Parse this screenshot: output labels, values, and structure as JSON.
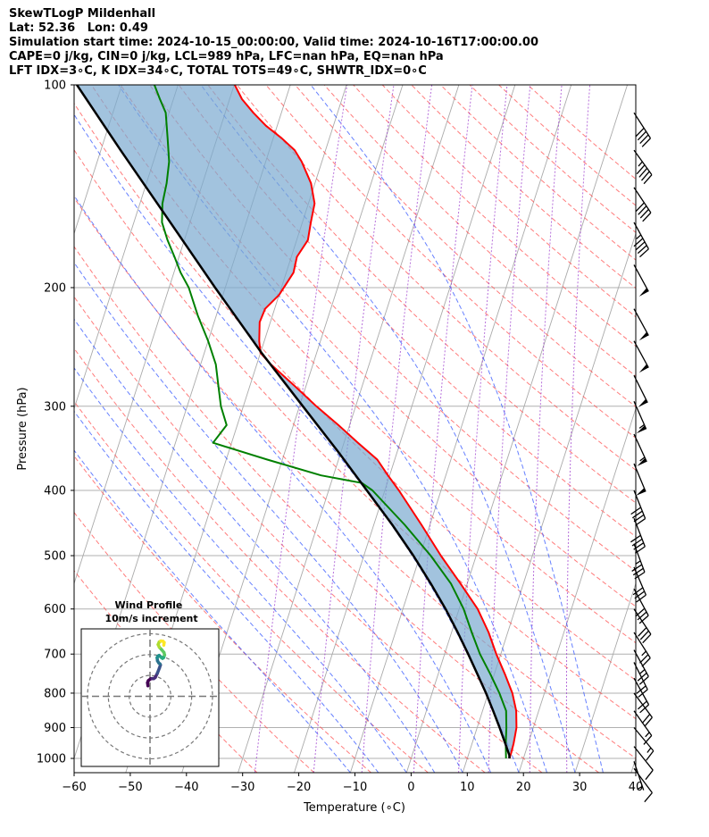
{
  "chart_data": {
    "type": "line",
    "title": "SkewTLogP Mildenhall",
    "header_lines": [
      "SkewTLogP Mildenhall",
      "Lat: 52.36   Lon: 0.49",
      "Simulation start time: 2024-10-15_00:00:00, Valid time: 2024-10-16T17:00:00.00",
      "CAPE=0 j/kg, CIN=0 j/kg, LCL=989 hPa, LFC=nan hPa, EQ=nan hPa",
      "LFT IDX=3∘C, K IDX=34∘C, TOTAL TOTS=49∘C, SHWTR_IDX=0∘C"
    ],
    "xlabel": "Temperature (∘C)",
    "ylabel": "Pressure (hPa)",
    "xlim": [
      -60,
      40
    ],
    "ylim": [
      1050,
      100
    ],
    "x_ticks": [
      -60,
      -50,
      -40,
      -30,
      -20,
      -10,
      0,
      10,
      20,
      30,
      40
    ],
    "x_tick_labels": [
      "−60",
      "−50",
      "−40",
      "−30",
      "−20",
      "−10",
      "0",
      "10",
      "20",
      "30",
      "40"
    ],
    "y_ticks": [
      1000,
      900,
      800,
      700,
      600,
      500,
      400,
      300,
      200,
      100
    ],
    "y_tick_labels": [
      "1000",
      "900",
      "800",
      "700",
      "600",
      "500",
      "400",
      "300",
      "200",
      "100"
    ],
    "skew_per_log_decade": 38.5,
    "series": [
      {
        "name": "Temperature",
        "color": "#ff0000",
        "points": [
          [
            1000,
            17.5
          ],
          [
            980,
            17.5
          ],
          [
            950,
            17.4
          ],
          [
            925,
            17.2
          ],
          [
            900,
            17.0
          ],
          [
            850,
            16.0
          ],
          [
            800,
            14.3
          ],
          [
            750,
            11.9
          ],
          [
            700,
            9.2
          ],
          [
            650,
            6.6
          ],
          [
            600,
            3.3
          ],
          [
            550,
            -1.2
          ],
          [
            500,
            -6.3
          ],
          [
            450,
            -11.5
          ],
          [
            400,
            -17.5
          ],
          [
            380,
            -20.3
          ],
          [
            360,
            -23.1
          ],
          [
            340,
            -27.5
          ],
          [
            320,
            -32.0
          ],
          [
            300,
            -37.0
          ],
          [
            280,
            -42.0
          ],
          [
            260,
            -47.5
          ],
          [
            250,
            -50.0
          ],
          [
            240,
            -50.9
          ],
          [
            225,
            -51.9
          ],
          [
            215,
            -51.7
          ],
          [
            205,
            -50.0
          ],
          [
            190,
            -48.7
          ],
          [
            180,
            -49.0
          ],
          [
            170,
            -48.0
          ],
          [
            160,
            -48.5
          ],
          [
            150,
            -48.9
          ],
          [
            140,
            -50.7
          ],
          [
            130,
            -53.6
          ],
          [
            125,
            -55.5
          ],
          [
            120,
            -58.5
          ],
          [
            115,
            -62.0
          ],
          [
            110,
            -65.0
          ],
          [
            105,
            -67.8
          ],
          [
            100,
            -69.9
          ]
        ]
      },
      {
        "name": "Dewpoint",
        "color": "#008000",
        "points": [
          [
            1000,
            16.9
          ],
          [
            950,
            16.0
          ],
          [
            900,
            15.2
          ],
          [
            850,
            14.2
          ],
          [
            800,
            12.0
          ],
          [
            750,
            9.3
          ],
          [
            700,
            6.3
          ],
          [
            650,
            3.6
          ],
          [
            600,
            0.8
          ],
          [
            550,
            -2.9
          ],
          [
            500,
            -8.1
          ],
          [
            450,
            -14.5
          ],
          [
            400,
            -22.2
          ],
          [
            390,
            -24.5
          ],
          [
            380,
            -32.2
          ],
          [
            360,
            -42.7
          ],
          [
            340,
            -53.3
          ],
          [
            320,
            -51.9
          ],
          [
            300,
            -54.0
          ],
          [
            280,
            -55.6
          ],
          [
            260,
            -57.3
          ],
          [
            240,
            -60.0
          ],
          [
            220,
            -63.3
          ],
          [
            200,
            -66.5
          ],
          [
            190,
            -68.8
          ],
          [
            180,
            -70.8
          ],
          [
            170,
            -73.0
          ],
          [
            160,
            -75.0
          ],
          [
            150,
            -76.0
          ],
          [
            140,
            -76.4
          ],
          [
            130,
            -77.2
          ],
          [
            120,
            -78.8
          ],
          [
            110,
            -80.6
          ],
          [
            105,
            -82.4
          ],
          [
            100,
            -84.2
          ]
        ]
      },
      {
        "name": "Parcel profile",
        "color": "#000000",
        "points": [
          [
            1000,
            17.5
          ],
          [
            989,
            17.3
          ],
          [
            950,
            15.9
          ],
          [
            900,
            14.0
          ],
          [
            850,
            11.9
          ],
          [
            800,
            9.6
          ],
          [
            750,
            7.0
          ],
          [
            700,
            4.2
          ],
          [
            650,
            1.1
          ],
          [
            600,
            -2.4
          ],
          [
            550,
            -6.5
          ],
          [
            500,
            -11.2
          ],
          [
            450,
            -16.7
          ],
          [
            400,
            -23.2
          ],
          [
            350,
            -30.6
          ],
          [
            300,
            -39.4
          ],
          [
            250,
            -49.8
          ],
          [
            200,
            -61.8
          ],
          [
            150,
            -76.9
          ],
          [
            125,
            -86.5
          ],
          [
            100,
            -98.0
          ]
        ]
      }
    ],
    "dry_adiabats_theta_K": [
      -30,
      -20,
      -10,
      0,
      10,
      20,
      30,
      40,
      50,
      60,
      70,
      80,
      90,
      100,
      110,
      120,
      130,
      140,
      150,
      160,
      170,
      180,
      190,
      200,
      210,
      220
    ],
    "moist_adiabats_start_C": [
      -10,
      -5,
      0,
      5,
      10,
      15,
      20,
      25,
      30,
      35
    ],
    "mixing_ratio_lines": [
      0.4,
      1,
      2,
      4,
      7,
      10,
      16,
      24
    ],
    "wind_barbs": {
      "pressures": [
        1035,
        1010,
        960,
        900,
        850,
        800,
        760,
        720,
        690,
        650,
        600,
        560,
        520,
        480,
        440,
        400,
        365,
        330,
        295,
        270,
        240,
        215,
        185,
        160,
        142,
        125,
        110
      ],
      "u_ms": [
        -3,
        -1,
        -4,
        -5,
        -5,
        -6,
        -5,
        -5,
        -6,
        -7,
        -8,
        -7,
        -6,
        -6,
        -7,
        -8,
        -10,
        -12,
        -11,
        -12,
        -12,
        -12,
        -12,
        -11,
        -12,
        -13,
        -11
      ],
      "v_ms": [
        4,
        3,
        5,
        6,
        7,
        8,
        9,
        10,
        11,
        11,
        12,
        13,
        14,
        16,
        18,
        20,
        24,
        26,
        25,
        24,
        22,
        22,
        22,
        20,
        18,
        18,
        17
      ]
    },
    "hodograph": {
      "title": "Wind Profile",
      "subtitle": "10m/s increment",
      "rings_ms": [
        10,
        20,
        30
      ],
      "u": [
        -1,
        -1.2,
        -0.8,
        0.3,
        1,
        1.8,
        2.5,
        3.5,
        4.5,
        5,
        4.8,
        4.2,
        3.6,
        3.4,
        3.8,
        4.4,
        4.8,
        5.4,
        6.0,
        6.5,
        7.0,
        6.7,
        5.6,
        4.5,
        3.9,
        4.4,
        5.2,
        6.2,
        6.8,
        6.6
      ],
      "v": [
        5,
        6.5,
        7.5,
        8.4,
        8.5,
        8.5,
        9.0,
        11.0,
        13.5,
        15.0,
        15.5,
        16.0,
        17.0,
        18.5,
        19.3,
        19.6,
        19.2,
        18.6,
        18.2,
        18.5,
        19.8,
        21.0,
        22.3,
        23.5,
        24.8,
        26.0,
        26.5,
        26.4,
        25.8,
        24.5
      ],
      "colormap": "viridis"
    }
  }
}
